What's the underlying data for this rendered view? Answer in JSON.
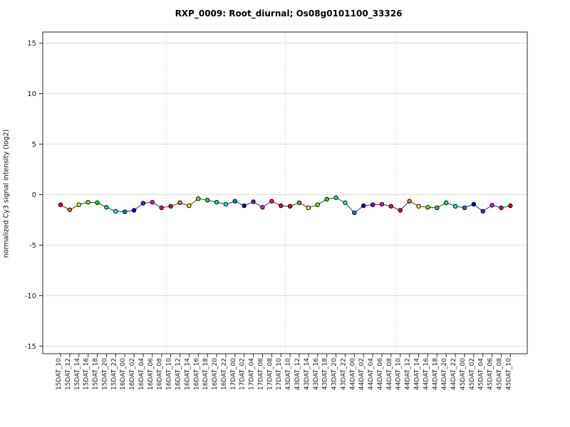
{
  "page": {
    "background": "#ffffff"
  },
  "chart_data": {
    "type": "line",
    "title": "RXP_0009: Root_diurnal; Os08g0101100_33326",
    "xlabel": "",
    "ylabel": "normalized Cy3 signal intensity (log2)",
    "ylim": [
      -16,
      16.2
    ],
    "yticks": [
      15,
      10,
      5,
      0,
      -5,
      -10,
      -15
    ],
    "grid": "horizontal solid light gray at every y tick; vertical dotted day-separator lines",
    "legend": "none",
    "categories": [
      "15DAT_10",
      "15DAT_12",
      "15DAT_14",
      "15DAT_16",
      "15DAT_18",
      "15DAT_20",
      "15DAT_22",
      "16DAT_00",
      "16DAT_02",
      "16DAT_04",
      "16DAT_06",
      "16DAT_08",
      "16DAT_10",
      "16DAT_12",
      "16DAT_14",
      "16DAT_16",
      "16DAT_18",
      "16DAT_20",
      "16DAT_22",
      "17DAT_00",
      "17DAT_02",
      "17DAT_04",
      "17DAT_06",
      "17DAT_08",
      "17DAT_10",
      "43DAT_10",
      "43DAT_12",
      "43DAT_14",
      "43DAT_16",
      "43DAT_18",
      "43DAT_20",
      "43DAT_22",
      "44DAT_00",
      "44DAT_02",
      "44DAT_04",
      "44DAT_06",
      "44DAT_08",
      "44DAT_10",
      "44DAT_12",
      "44DAT_14",
      "44DAT_16",
      "44DAT_18",
      "44DAT_20",
      "44DAT_22",
      "45DAT_00",
      "45DAT_02",
      "45DAT_04",
      "45DAT_06",
      "45DAT_08",
      "45DAT_10"
    ],
    "values": [
      -1.0,
      -1.5,
      -1.0,
      -0.75,
      -0.8,
      -1.25,
      -1.65,
      -1.7,
      -1.55,
      -0.85,
      -0.75,
      -1.3,
      -1.15,
      -0.8,
      -1.1,
      -0.4,
      -0.55,
      -0.75,
      -0.95,
      -0.65,
      -1.1,
      -0.7,
      -1.25,
      -0.65,
      -1.1,
      -1.15,
      -0.8,
      -1.3,
      -1.0,
      -0.45,
      -0.3,
      -0.8,
      -1.8,
      -1.1,
      -1.0,
      -0.95,
      -1.15,
      -1.55,
      -0.65,
      -1.15,
      -1.25,
      -1.3,
      -0.8,
      -1.15,
      -1.3,
      -0.95,
      -1.65,
      -1.05,
      -1.3,
      -1.1
    ],
    "point_colors": [
      "#FF0000",
      "#FF8000",
      "#FFFF00",
      "#80FF00",
      "#00FF00",
      "#00FF80",
      "#00FFFF",
      "#0080FF",
      "#0000FF",
      "#8000FF",
      "#FF00FF",
      "#FF0080",
      "#FF0000",
      "#FF8000",
      "#FFFF00",
      "#80FF00",
      "#00FF00",
      "#00FF80",
      "#00FFFF",
      "#0080FF",
      "#0000FF",
      "#8000FF",
      "#FF00FF",
      "#FF0080",
      "#FF0000",
      "#FF0000",
      "#FF8000",
      "#FFFF00",
      "#80FF00",
      "#00FF00",
      "#00FF80",
      "#00FFFF",
      "#0080FF",
      "#0000FF",
      "#8000FF",
      "#FF00FF",
      "#FF0080",
      "#FF0000",
      "#FF8000",
      "#FFFF00",
      "#80FF00",
      "#00FF00",
      "#00FF80",
      "#00FFFF",
      "#0080FF",
      "#0000FF",
      "#8000FF",
      "#FF00FF",
      "#FF0080",
      "#FF0000"
    ],
    "palette_cycle_12": [
      "#FF0000",
      "#FF8000",
      "#FFFF00",
      "#80FF00",
      "#00FF00",
      "#00FF80",
      "#00FFFF",
      "#0080FF",
      "#0000FF",
      "#8000FF",
      "#FF00FF",
      "#FF0080"
    ],
    "day_separators_after_index": [
      11,
      24,
      36
    ],
    "line_color": "#383838",
    "gridline_color": "#dcdcdc",
    "separator_color": "#c6c6c6",
    "axis_color": "#2a2a2a",
    "tick_label_color": "#1a1a1a"
  }
}
